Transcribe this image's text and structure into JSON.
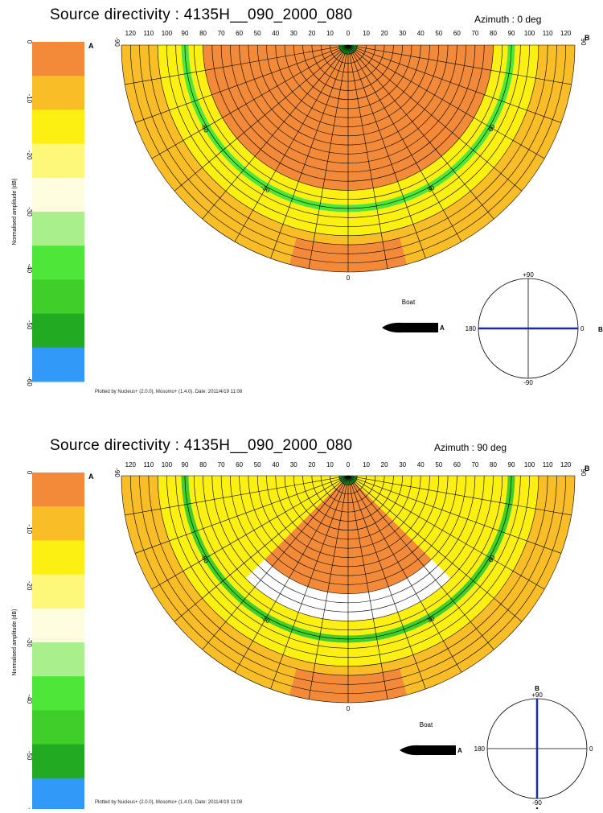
{
  "colors": {
    "scale": [
      "#f28a3a",
      "#f9bd28",
      "#fcef12",
      "#fdf87a",
      "#fffde0",
      "#a9f08c",
      "#4fe63a",
      "#3fce2a",
      "#22aa22",
      "#3199f7"
    ],
    "grid": "#000000",
    "arrow": "#1a2bb0"
  },
  "panels": [
    {
      "title": "Source directivity : 4135H__090_2000_080",
      "azimuth": "Azimuth : 0 deg",
      "colorbar_label": "Normalised amplitude (dB)",
      "boat_label": "Boat",
      "label_a": "A",
      "label_b": "B",
      "footer": "Plotted by Nucleus+ (2.0.0), Mosomo+ (1.4.0). Date: 2011/4/19 11:08",
      "compass": {
        "top": "+90",
        "bottom": "-90",
        "left": "180",
        "right": "0",
        "arrow_direction_deg": 0
      }
    },
    {
      "title": "Source directivity : 4135H__090_2000_080",
      "azimuth": "Azimuth : 90 deg",
      "colorbar_label": "Normalised amplitude (dB)",
      "boat_label": "Boat",
      "label_a": "A",
      "label_b": "B",
      "footer": "Plotted by Nucleus+ (2.0.0), Mosomo+ (1.4.0). Date: 2011/4/19 11:08",
      "compass": {
        "top": "+90",
        "bottom": "-90",
        "left": "180",
        "right": "0",
        "arrow_direction_deg": 90
      }
    }
  ],
  "chart_data": [
    {
      "type": "heatmap",
      "title": "Source directivity : 4135H__090_2000_080",
      "subtitle": "Azimuth : 0 deg",
      "ylabel": "Normalised amplitude (dB)",
      "colorbar_ticks": [
        "0",
        "-10",
        "-20",
        "-30",
        "-40",
        "-50",
        "-60"
      ],
      "colorbar_range": [
        -60,
        0
      ],
      "frequency_ticks": [
        "120",
        "110",
        "100",
        "90",
        "80",
        "70",
        "60",
        "50",
        "40",
        "30",
        "20",
        "10",
        "0",
        "10",
        "20",
        "30",
        "40",
        "50",
        "60",
        "70",
        "80",
        "90",
        "100",
        "110",
        "120"
      ],
      "frequency_range": [
        0,
        125
      ],
      "angle_ticks": [
        "-90",
        "-60",
        "-30",
        "0",
        "30",
        "60",
        "90"
      ],
      "angle_range": [
        -90,
        90
      ],
      "layers": [
        {
          "from_freq": 0,
          "to_freq": 5,
          "level_db": -48
        },
        {
          "from_freq": 5,
          "to_freq": 65,
          "level_db": 0
        },
        {
          "from_freq": 65,
          "to_freq": 80,
          "level_db": -5
        },
        {
          "from_freq": 80,
          "to_freq": 88,
          "level_db": -17
        },
        {
          "from_freq": 88,
          "to_freq": 92,
          "level_db": -38
        },
        {
          "from_freq": 92,
          "to_freq": 105,
          "level_db": -12
        },
        {
          "from_freq": 105,
          "to_freq": 125,
          "level_db": -6
        },
        {
          "from_freq": 110,
          "to_freq": 125,
          "level_db": 0,
          "angle_range": [
            -15,
            15
          ]
        }
      ]
    },
    {
      "type": "heatmap",
      "title": "Source directivity : 4135H__090_2000_080",
      "subtitle": "Azimuth : 90 deg",
      "ylabel": "Normalised amplitude (dB)",
      "colorbar_ticks": [
        "0",
        "-10",
        "-20",
        "-30",
        "-40",
        "-50",
        "-60"
      ],
      "colorbar_range": [
        -60,
        0
      ],
      "frequency_ticks": [
        "120",
        "110",
        "100",
        "90",
        "80",
        "70",
        "60",
        "50",
        "40",
        "30",
        "20",
        "10",
        "0",
        "10",
        "20",
        "30",
        "40",
        "50",
        "60",
        "70",
        "80",
        "90",
        "100",
        "110",
        "120"
      ],
      "frequency_range": [
        0,
        125
      ],
      "angle_ticks": [
        "-90",
        "-60",
        "-30",
        "0",
        "30",
        "60",
        "90"
      ],
      "angle_range": [
        -90,
        90
      ],
      "layers": [
        {
          "from_freq": 0,
          "to_freq": 5,
          "level_db": -48
        },
        {
          "from_freq": 5,
          "to_freq": 65,
          "level_db": 0,
          "angle_range": [
            -45,
            45
          ]
        },
        {
          "from_freq": 5,
          "to_freq": 80,
          "level_db": -15,
          "angle_range": [
            -90,
            -45
          ]
        },
        {
          "from_freq": 5,
          "to_freq": 80,
          "level_db": -15,
          "angle_range": [
            45,
            90
          ]
        },
        {
          "from_freq": 80,
          "to_freq": 88,
          "level_db": -17
        },
        {
          "from_freq": 88,
          "to_freq": 92,
          "level_db": -42
        },
        {
          "from_freq": 92,
          "to_freq": 105,
          "level_db": -12
        },
        {
          "from_freq": 105,
          "to_freq": 125,
          "level_db": -6
        },
        {
          "from_freq": 110,
          "to_freq": 125,
          "level_db": 0,
          "angle_range": [
            -15,
            15
          ]
        }
      ]
    }
  ]
}
